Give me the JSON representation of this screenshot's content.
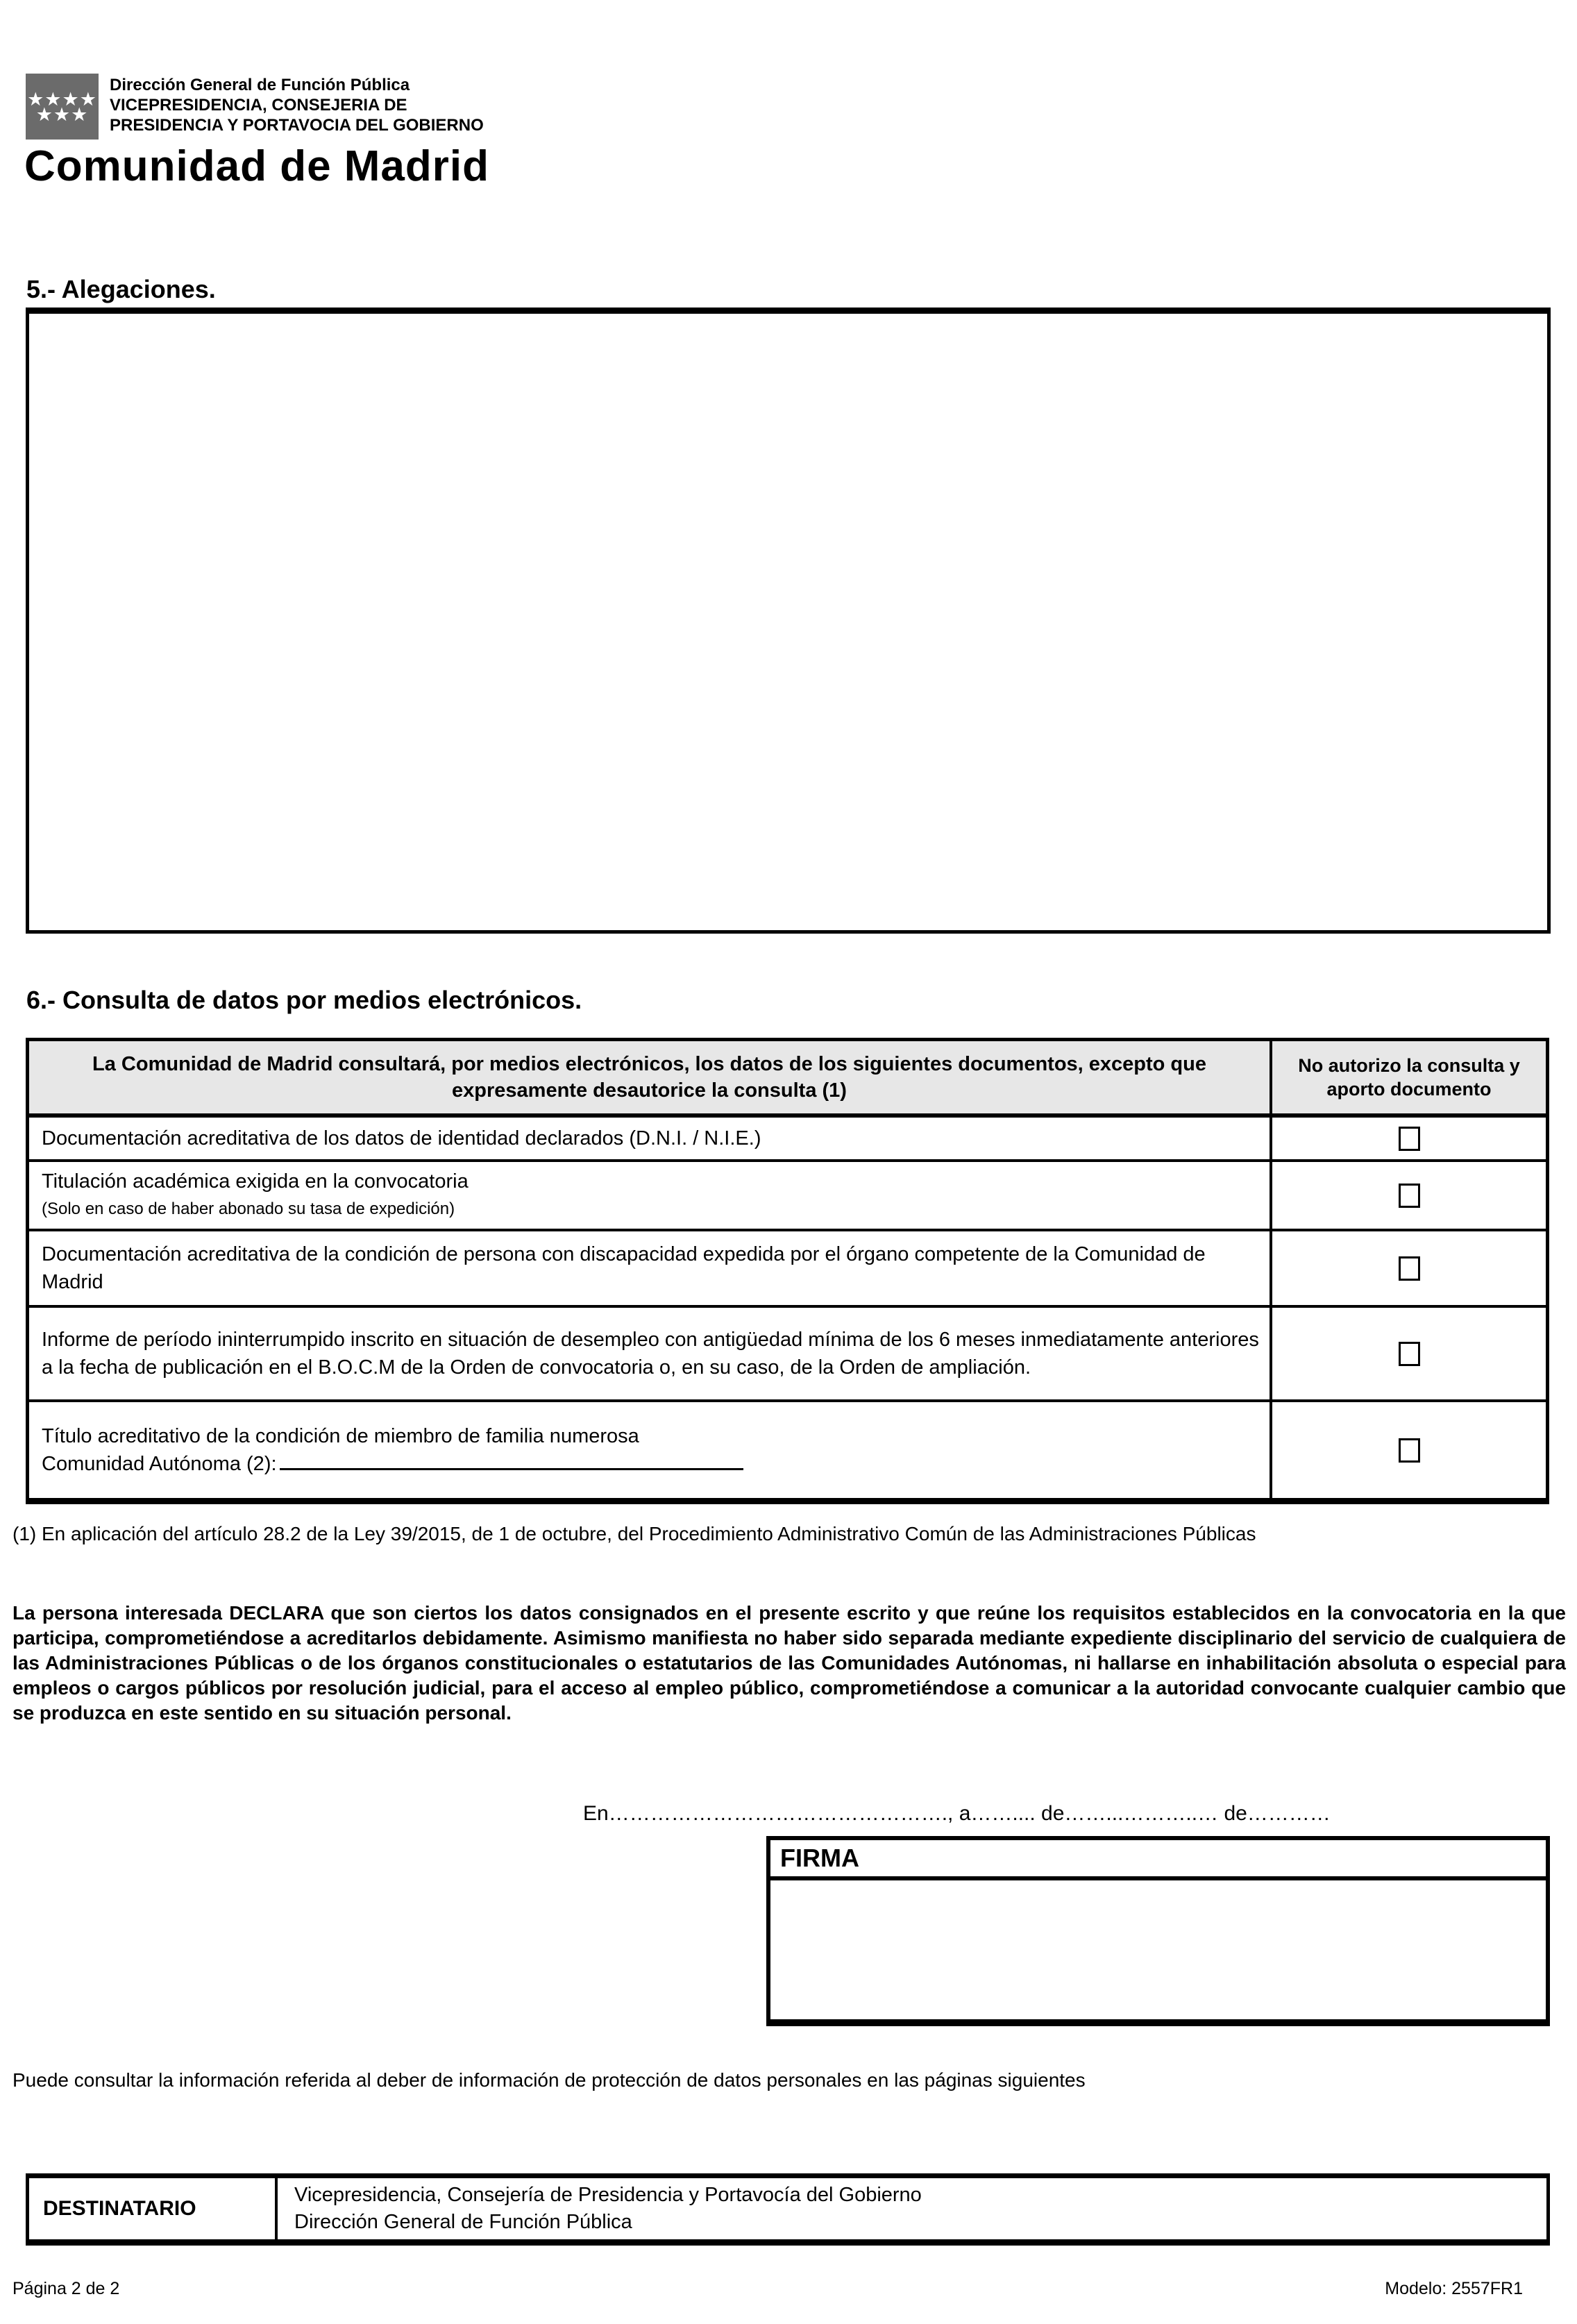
{
  "header": {
    "logo": {
      "row1": "★★★★",
      "row2": "★★★",
      "color": "#6b6b6b"
    },
    "org_line1": "Dirección General de Función Pública",
    "org_line2": "VICEPRESIDENCIA, CONSEJERIA DE",
    "org_line3": "PRESIDENCIA Y PORTAVOCIA DEL GOBIERNO",
    "brand": "Comunidad de Madrid"
  },
  "section5": {
    "title": "5.- Alegaciones."
  },
  "section6": {
    "title": "6.- Consulta de datos por medios electrónicos.",
    "table": {
      "header_left": "La Comunidad de Madrid consultará, por medios electrónicos, los datos de los siguientes documentos, excepto que expresamente desautorice la consulta (1)",
      "header_right": "No autorizo la consulta y aporto documento",
      "header_bg": "#e7e7e7",
      "rows": [
        {
          "text": "Documentación acreditativa de los datos de identidad declarados (D.N.I. / N.I.E.)"
        },
        {
          "text": "Titulación académica exigida en la convocatoria ",
          "small": "(Solo en caso de haber abonado su tasa de expedición)"
        },
        {
          "text": "Documentación acreditativa de la condición de persona con discapacidad expedida por el órgano competente de la Comunidad de Madrid"
        },
        {
          "text": "Informe de período ininterrumpido inscrito en situación de desempleo con antigüedad mínima de los 6 meses inmediatamente anteriores a la fecha de publicación en el B.O.C.M de la Orden de convocatoria o, en su caso, de la Orden de ampliación."
        },
        {
          "line1": "Título acreditativo de la condición de miembro de familia numerosa",
          "line2": "Comunidad Autónoma (2):"
        }
      ]
    }
  },
  "footnote": "(1) En aplicación del artículo 28.2 de la Ley 39/2015, de 1 de octubre, del Procedimiento Administrativo Común de las Administraciones Públicas",
  "declaration": "La persona interesada DECLARA que son ciertos los datos consignados en el presente escrito y que reúne los requisitos establecidos en la convocatoria en la que participa, comprometiéndose a acreditarlos debidamente. Asimismo manifiesta no haber sido separada mediante expediente disciplinario del servicio de cualquiera de las Administraciones Públicas o de los órganos constitucionales o estatutarios de las Comunidades Autónomas, ni hallarse en inhabilitación absoluta o especial para empleos o cargos públicos por resolución judicial, para el acceso al empleo público, comprometiéndose a comunicar a la autoridad convocante cualquier cambio que se produzca en este sentido en su situación personal.",
  "date_line": "En…………………………………………., a…….... de……...………..… de…………",
  "firma": {
    "label": "FIRMA"
  },
  "privacy_note": "Puede consultar la información referida al deber de información de protección de datos personales en las páginas siguientes",
  "destinatario": {
    "label": "DESTINATARIO",
    "line1": "Vicepresidencia, Consejería de Presidencia y Portavocía del Gobierno",
    "line2": "Dirección General de Función Pública"
  },
  "footer": {
    "page": "Página 2 de 2",
    "model": "Modelo: 2557FR1"
  }
}
